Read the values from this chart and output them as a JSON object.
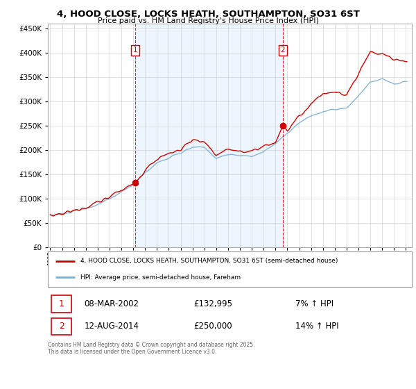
{
  "title_line1": "4, HOOD CLOSE, LOCKS HEATH, SOUTHAMPTON, SO31 6ST",
  "title_line2": "Price paid vs. HM Land Registry's House Price Index (HPI)",
  "legend_line1": "4, HOOD CLOSE, LOCKS HEATH, SOUTHAMPTON, SO31 6ST (semi-detached house)",
  "legend_line2": "HPI: Average price, semi-detached house, Fareham",
  "footnote": "Contains HM Land Registry data © Crown copyright and database right 2025.\nThis data is licensed under the Open Government Licence v3.0.",
  "sale1_label": "1",
  "sale1_date": "08-MAR-2002",
  "sale1_price": 132995,
  "sale1_hpi_pct": "7% ↑ HPI",
  "sale2_label": "2",
  "sale2_date": "12-AUG-2014",
  "sale2_price": 250000,
  "sale2_hpi_pct": "14% ↑ HPI",
  "sale1_year": 2002.19,
  "sale2_year": 2014.62,
  "ylim_min": 0,
  "ylim_max": 460000,
  "xlim_min": 1994.8,
  "xlim_max": 2025.5,
  "price_color": "#cc0000",
  "hpi_color": "#7aafd4",
  "sale_marker_color": "#cc0000",
  "vline_color": "#cc0000",
  "figure_bg": "#ffffff",
  "plot_bg_color": "#ffffff",
  "grid_color": "#cccccc",
  "label_box_color": "#cc0000",
  "highlight_bg": "#ddeeff"
}
